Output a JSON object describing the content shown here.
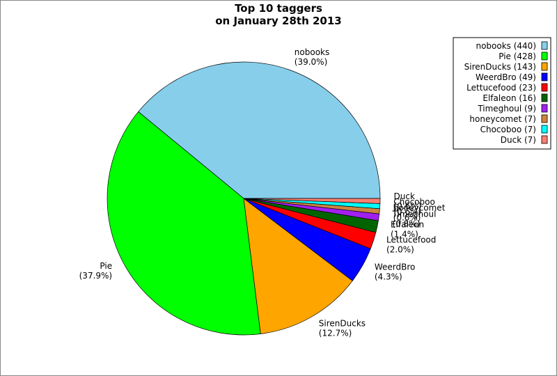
{
  "chart_data": {
    "type": "pie",
    "title": "Top 10 taggers",
    "subtitle": "on January 28th 2013",
    "categories": [
      "nobooks",
      "Pie",
      "SirenDucks",
      "WeerdBro",
      "Lettucefood",
      "Elfaleon",
      "Timeghoul",
      "honeycomet",
      "Chocoboo",
      "Duck"
    ],
    "values": [
      39.0,
      37.9,
      12.7,
      4.3,
      2.0,
      1.4,
      0.8,
      0.6,
      0.6,
      0.6
    ],
    "value_labels": [
      "(39.0%)",
      "(37.9%)",
      "(12.7%)",
      "(4.3%)",
      "(2.0%)",
      "(1.4%)",
      "(0.8%)",
      "(0.6%)",
      "(0.6%)",
      "(0.6%)"
    ],
    "colors": [
      "#87ceeb",
      "#00ff00",
      "#ffa500",
      "#0000ff",
      "#ff0000",
      "#006400",
      "#a020f0",
      "#cd853f",
      "#00ffff",
      "#fa8072"
    ],
    "legend": [
      "nobooks (440)",
      "Pie (428)",
      "SirenDucks (143)",
      "WeerdBro (49)",
      "Lettucefood (23)",
      "Elfaleon (16)",
      "Timeghoul (9)",
      "honeycomet (7)",
      "Chocoboo (7)",
      "Duck (7)"
    ],
    "legend_position": "upper right"
  }
}
